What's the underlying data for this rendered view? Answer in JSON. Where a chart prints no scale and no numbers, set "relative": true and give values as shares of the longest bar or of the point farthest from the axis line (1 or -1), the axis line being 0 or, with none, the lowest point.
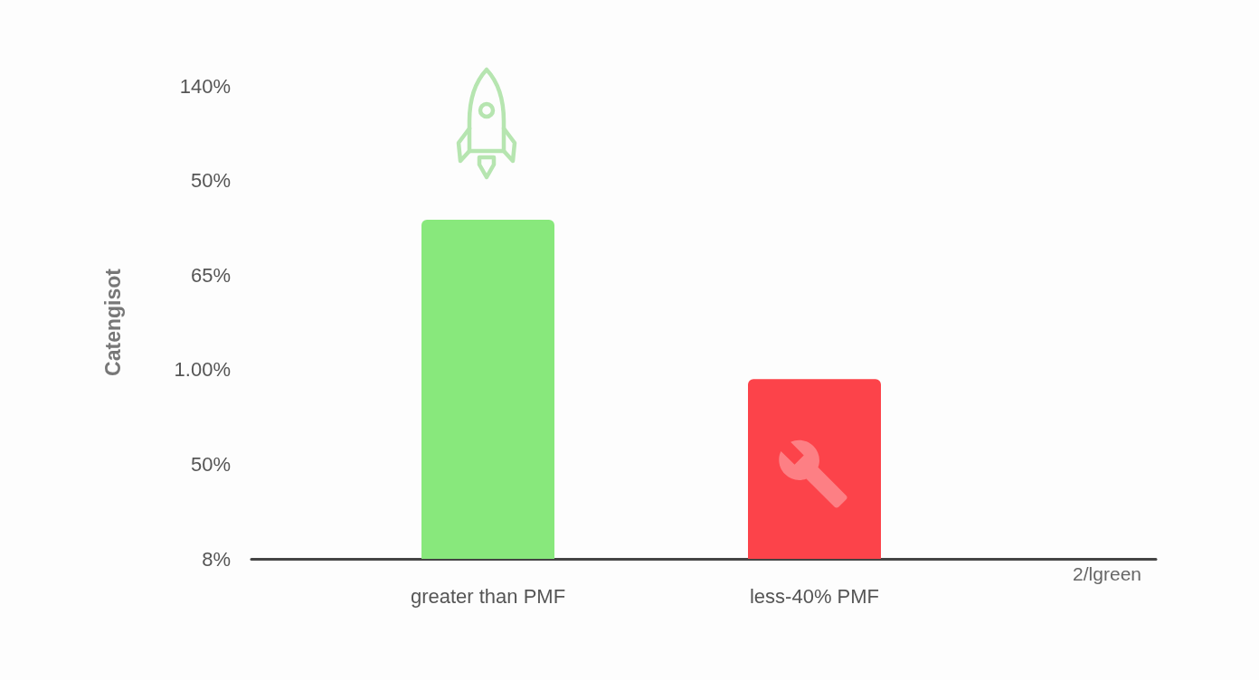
{
  "chart_data": {
    "type": "bar",
    "relative": true,
    "categories": [
      "greater than PMF",
      "less-40% PMF"
    ],
    "values": [
      1,
      0.53
    ],
    "colors": [
      "#88e87c",
      "#fc434a"
    ],
    "annotations": [
      "Catengisot",
      "140%",
      "50%",
      "65%",
      "1.00%",
      "50%",
      "8%",
      "2/lgreen"
    ]
  }
}
